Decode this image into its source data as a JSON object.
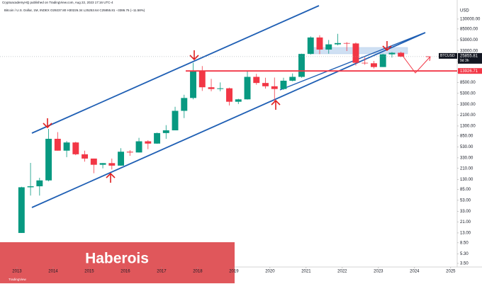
{
  "author_line": "CryptoacademyHQ published on TradingView.com, Aug 22, 2023 17:16 UTC-4",
  "overlay_text": "Haberois",
  "logo_text": "TradingView",
  "chart_data": {
    "type": "candlestick",
    "legend_text": "Bitcoin / U.S. Dollar, 1M, INDEX  O29237.80  H30226.34  L25253.64  C25855.81  −3386.76 (−11.58%)",
    "currency": "USD",
    "symbol": "BTCUSD",
    "countdown": "9d 3h",
    "log_scale": true,
    "grid": false,
    "color_up": "#089981",
    "color_down": "#f23645",
    "x": [
      2013.125,
      2013.375,
      2013.625,
      2013.875,
      2014.125,
      2014.375,
      2014.625,
      2014.875,
      2015.125,
      2015.375,
      2015.625,
      2015.875,
      2016.125,
      2016.375,
      2016.625,
      2016.875,
      2017.125,
      2017.375,
      2017.625,
      2017.875,
      2018.125,
      2018.375,
      2018.625,
      2018.875,
      2019.125,
      2019.375,
      2019.625,
      2019.875,
      2020.125,
      2020.375,
      2020.625,
      2020.875,
      2021.125,
      2021.375,
      2021.625,
      2021.875,
      2022.125,
      2022.375,
      2022.625,
      2022.875,
      2023.125,
      2023.375,
      2023.625
    ],
    "open": [
      13,
      93,
      97,
      125,
      750,
      450,
      640,
      385,
      320,
      245,
      263,
      236,
      430,
      416,
      673,
      610,
      960,
      1080,
      2500,
      4350,
      14000,
      6900,
      6400,
      6600,
      3700,
      4100,
      10800,
      8300,
      7200,
      6400,
      9150,
      10800,
      29000,
      58900,
      35000,
      43800,
      46300,
      45500,
      19800,
      19400,
      16500,
      28500,
      30500
    ],
    "high": [
      95,
      266,
      140,
      1150,
      1000,
      680,
      660,
      450,
      320,
      265,
      320,
      500,
      460,
      780,
      705,
      980,
      1350,
      2980,
      5000,
      19800,
      17200,
      9900,
      8500,
      6800,
      4200,
      13900,
      12300,
      10400,
      10500,
      10400,
      12500,
      29300,
      61800,
      64900,
      52900,
      69000,
      48200,
      47400,
      25200,
      21500,
      29200,
      31400,
      31800
    ],
    "low": [
      13,
      65,
      65,
      120,
      450,
      340,
      370,
      280,
      170,
      210,
      200,
      236,
      360,
      415,
      480,
      605,
      750,
      1080,
      1830,
      4100,
      5900,
      5800,
      5800,
      3150,
      3350,
      4050,
      7700,
      6500,
      3850,
      6150,
      8900,
      10400,
      28100,
      28800,
      29300,
      42000,
      32900,
      17600,
      18200,
      15500,
      16500,
      24800,
      25250
    ],
    "close": [
      93,
      97,
      125,
      750,
      450,
      640,
      385,
      320,
      245,
      263,
      236,
      430,
      416,
      673,
      610,
      960,
      1080,
      2500,
      4350,
      14000,
      6900,
      6400,
      6600,
      3700,
      4100,
      10800,
      8300,
      7200,
      6400,
      9150,
      10800,
      29000,
      58900,
      35000,
      43800,
      46300,
      45500,
      19800,
      19400,
      16500,
      28500,
      30500,
      25855.81
    ],
    "xlim": [
      2012.53,
      2025.18
    ],
    "xticks": [
      2013,
      2014,
      2015,
      2016,
      2017,
      2018,
      2019,
      2020,
      2021,
      2022,
      2023,
      2024,
      2025
    ],
    "ylim": [
      2.35,
      254000
    ],
    "yticks": [
      {
        "value": 130000,
        "label": "130000.00"
      },
      {
        "value": 85000,
        "label": "85000.00"
      },
      {
        "value": 53000,
        "label": "53000.00"
      },
      {
        "value": 33000,
        "label": "33000.00"
      },
      {
        "value": 21000,
        "label": "21000.00"
      },
      {
        "value": 13000,
        "label": "13000.00"
      },
      {
        "value": 8500,
        "label": "8500.00"
      },
      {
        "value": 5300,
        "label": "5300.00"
      },
      {
        "value": 3300,
        "label": "3300.00"
      },
      {
        "value": 2100,
        "label": "2100.00"
      },
      {
        "value": 1300,
        "label": "1300.00"
      },
      {
        "value": 850,
        "label": "850.00"
      },
      {
        "value": 530,
        "label": "530.00"
      },
      {
        "value": 330,
        "label": "330.00"
      },
      {
        "value": 210,
        "label": "210.00"
      },
      {
        "value": 130,
        "label": "130.00"
      },
      {
        "value": 85,
        "label": "85.00"
      },
      {
        "value": 53,
        "label": "53.00"
      },
      {
        "value": 33,
        "label": "33.00"
      },
      {
        "value": 21,
        "label": "21.00"
      },
      {
        "value": 13,
        "label": "13.00"
      },
      {
        "value": 8.5,
        "label": "8.50"
      },
      {
        "value": 5.3,
        "label": "5.30"
      },
      {
        "value": 3.5,
        "label": "3.50"
      }
    ],
    "hline": {
      "value": 13926.71,
      "color": "#f23645"
    }
  }
}
